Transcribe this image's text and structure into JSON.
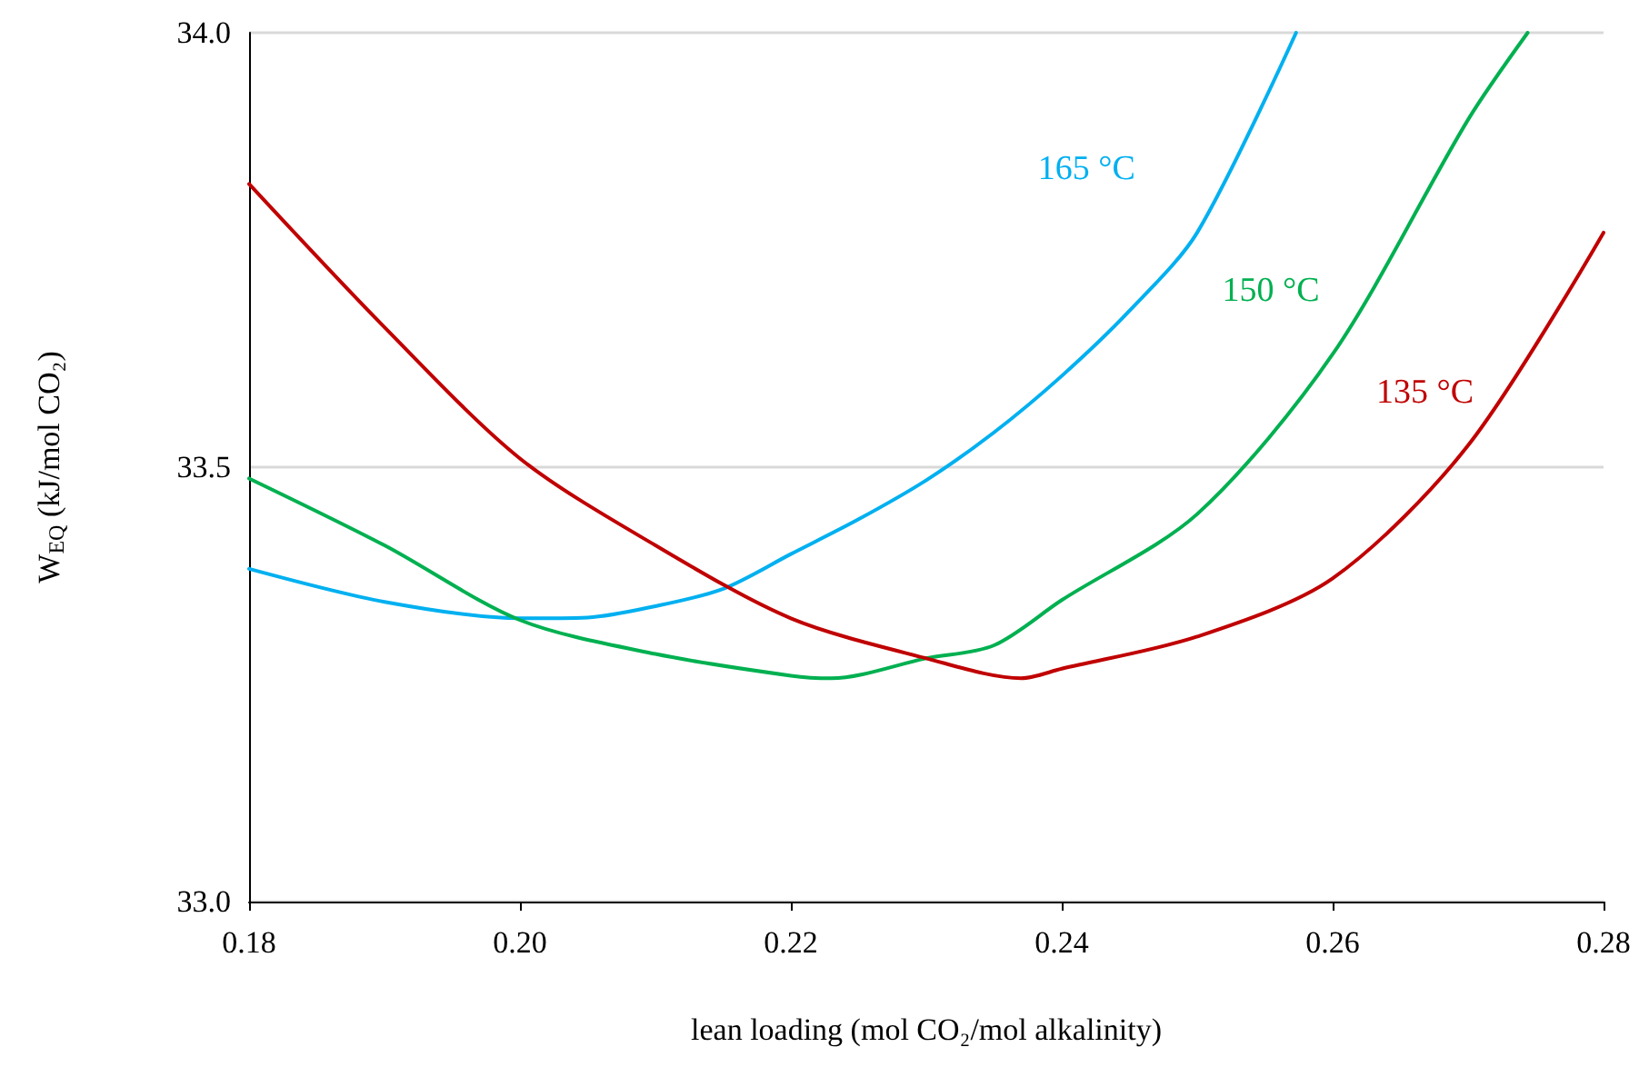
{
  "chart_data": {
    "type": "line",
    "xlabel": "lean loading (mol CO₂/mol alkalinity)",
    "ylabel": "W$_{EQ}$ (kJ/mol CO₂)",
    "xlim": [
      0.18,
      0.28
    ],
    "xticks": [
      {
        "value": 0.18,
        "label": "0.18"
      },
      {
        "value": 0.2,
        "label": "0.20"
      },
      {
        "value": 0.22,
        "label": "0.22"
      },
      {
        "value": 0.24,
        "label": "0.24"
      },
      {
        "value": 0.26,
        "label": "0.26"
      },
      {
        "value": 0.28,
        "label": "0.28"
      }
    ],
    "ylim": [
      33.0,
      34.0
    ],
    "yticks": [
      {
        "value": 33.0,
        "label": "33.0"
      },
      {
        "value": 33.5,
        "label": "33.5"
      },
      {
        "value": 34.0,
        "label": "34.0"
      }
    ],
    "grid": "y",
    "marker": "none",
    "line_style": "solid",
    "series": [
      {
        "name": "165 °C",
        "color": "#00b0f0",
        "x": [
          0.18,
          0.19,
          0.2,
          0.205,
          0.21,
          0.215,
          0.22,
          0.225,
          0.23,
          0.235,
          0.24,
          0.245,
          0.25,
          0.2573
        ],
        "values": [
          33.383,
          33.345,
          33.326,
          33.327,
          33.34,
          33.36,
          33.4,
          33.44,
          33.485,
          33.54,
          33.605,
          33.68,
          33.77,
          34.0
        ]
      },
      {
        "name": "150 °C",
        "color": "#00b050",
        "x": [
          0.18,
          0.19,
          0.2,
          0.21,
          0.22,
          0.223,
          0.23,
          0.235,
          0.24,
          0.25,
          0.26,
          0.27,
          0.2744
        ],
        "values": [
          33.487,
          33.41,
          33.324,
          33.285,
          33.26,
          33.257,
          33.28,
          33.295,
          33.347,
          33.446,
          33.63,
          33.9,
          34.0
        ]
      },
      {
        "name": "135 °C",
        "color": "#c00000",
        "x": [
          0.18,
          0.19,
          0.2,
          0.21,
          0.22,
          0.23,
          0.237,
          0.24,
          0.25,
          0.26,
          0.27,
          0.28
        ],
        "values": [
          33.826,
          33.661,
          33.51,
          33.41,
          33.326,
          33.28,
          33.257,
          33.268,
          33.305,
          33.372,
          33.525,
          33.77
        ]
      }
    ]
  }
}
